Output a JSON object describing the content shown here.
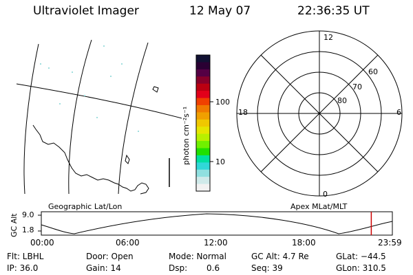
{
  "header": {
    "title": "Ultraviolet Imager",
    "date": "12 May 07",
    "time": "22:36:35 UT"
  },
  "colorbar": {
    "unit_label": "photon cm⁻²s⁻¹",
    "ticks": [
      "100",
      "10"
    ],
    "colors": [
      "#111133",
      "#2a0033",
      "#550044",
      "#88002a",
      "#bb0011",
      "#e2001a",
      "#f04000",
      "#f07a00",
      "#f0a000",
      "#f0c800",
      "#e6e600",
      "#b8f000",
      "#70f000",
      "#20e000",
      "#00e0a0",
      "#30d8d8",
      "#90e0e0",
      "#d0eaea",
      "#f2f2f2"
    ]
  },
  "map": {
    "caption": "Geographic Lat/Lon"
  },
  "polar": {
    "caption": "Apex MLat/MLT",
    "mlt_labels": {
      "top": "12",
      "bottom": "0",
      "left": "18",
      "right": "6"
    },
    "lat_labels": [
      "60",
      "70",
      "80"
    ]
  },
  "altitude_plot": {
    "y_axis_label": "GC Alt",
    "y_ticks": [
      "9.0",
      "1.8"
    ],
    "x_ticks": [
      "00:00",
      "06:00",
      "12:00",
      "18:00",
      "23:59"
    ],
    "current_time_fraction": 0.94,
    "marker_color": "#cc0000"
  },
  "info": {
    "filter": "Flt: LBHL",
    "ip": "IP: 36.0",
    "door": "Door: Open",
    "gain": "Gain: 14",
    "mode": "Mode: Normal",
    "dsp_label": "Dsp:",
    "dsp_value": "0.6",
    "gc_alt": "GC Alt: 4.7 Re",
    "seq": "Seq: 39",
    "glat": "GLat: −44.5",
    "glon": "GLon: 310.5"
  }
}
